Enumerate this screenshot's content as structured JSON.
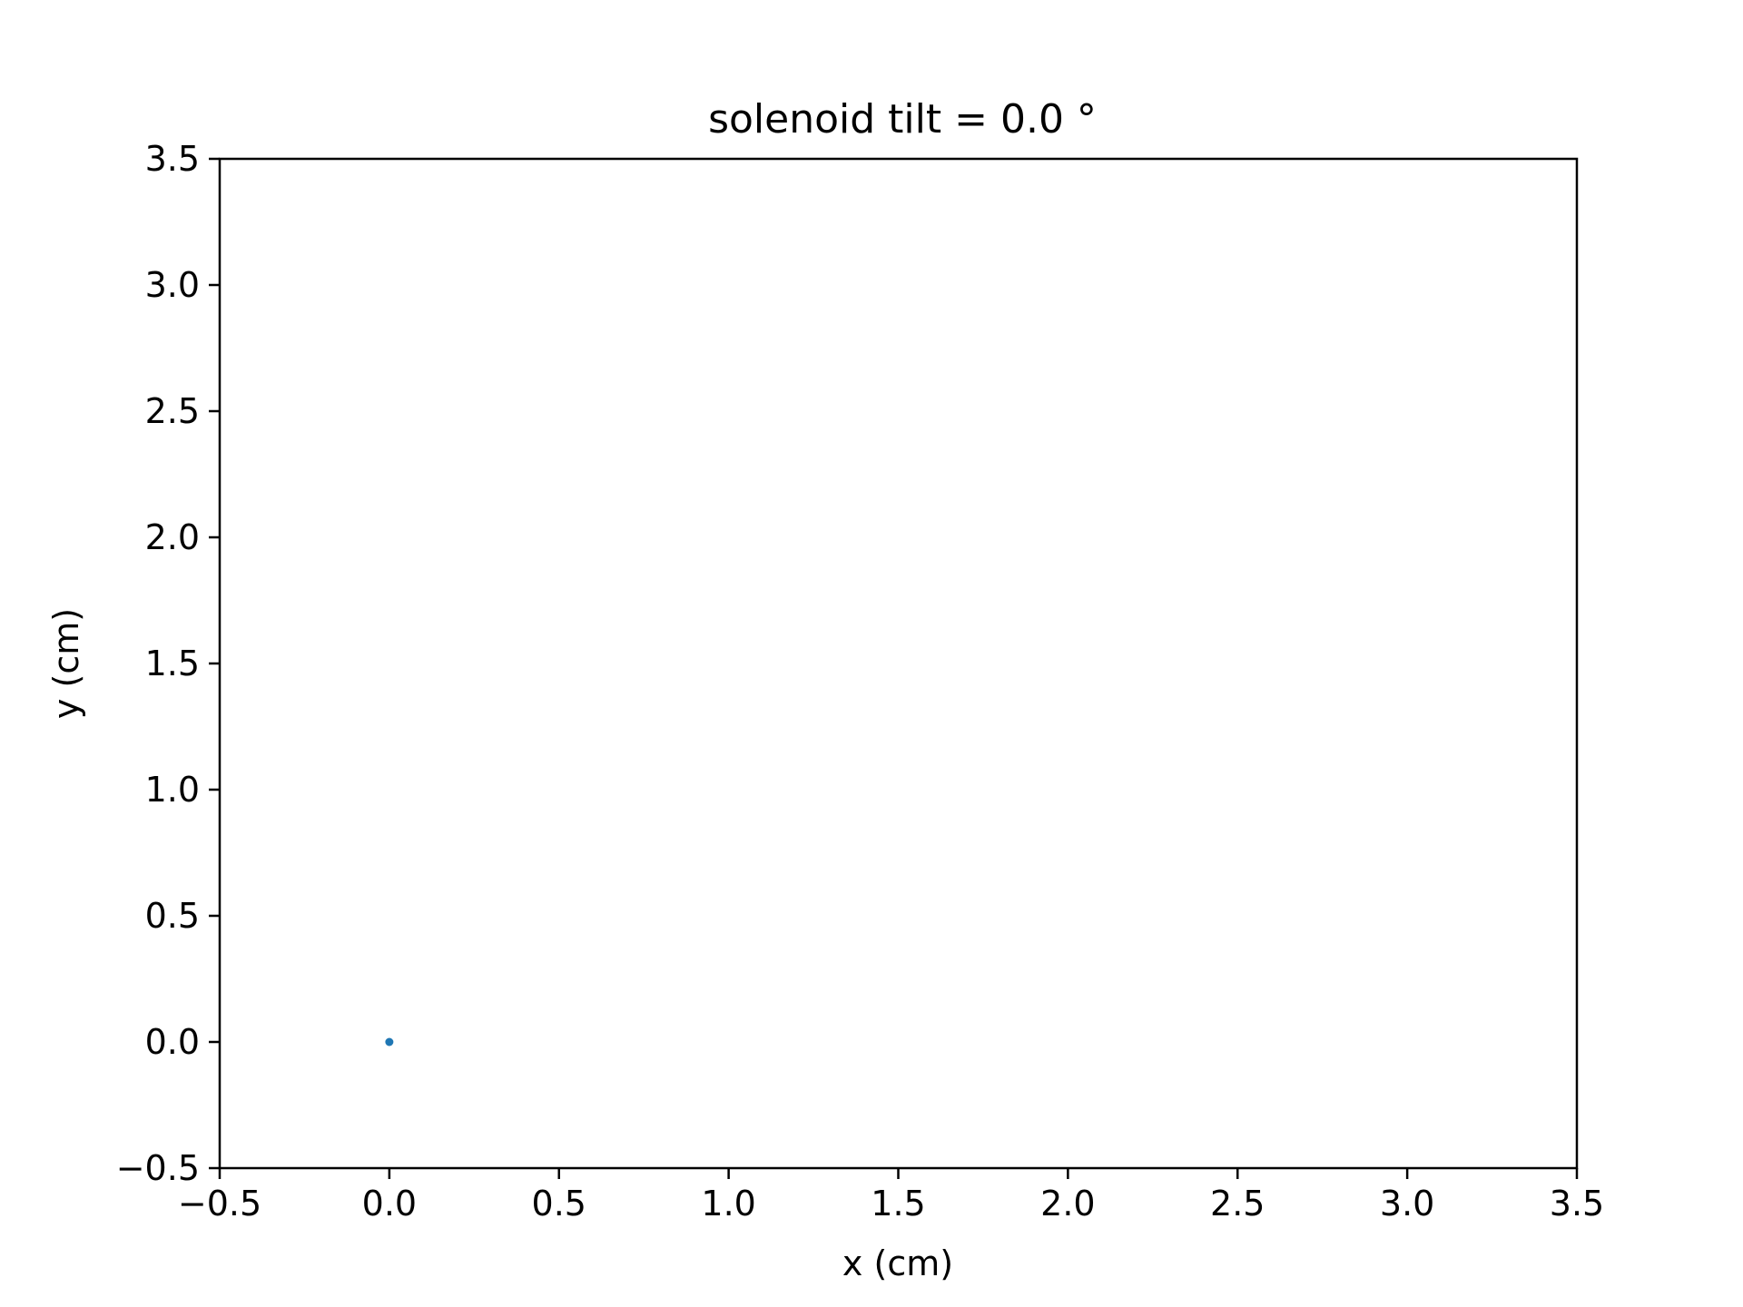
{
  "chart_data": {
    "type": "scatter",
    "title": "solenoid tilt = 0.0 °",
    "xlabel": "x (cm)",
    "ylabel": "y (cm)",
    "xlim": [
      -0.5,
      3.5
    ],
    "ylim": [
      -0.5,
      3.5
    ],
    "x_ticks": [
      -0.5,
      0.0,
      0.5,
      1.0,
      1.5,
      2.0,
      2.5,
      3.0,
      3.5
    ],
    "y_ticks": [
      -0.5,
      0.0,
      0.5,
      1.0,
      1.5,
      2.0,
      2.5,
      3.0,
      3.5
    ],
    "x_tick_labels": [
      "−0.5",
      "0.0",
      "0.5",
      "1.0",
      "1.5",
      "2.0",
      "2.5",
      "3.0",
      "3.5"
    ],
    "y_tick_labels": [
      "−0.5",
      "0.0",
      "0.5",
      "1.0",
      "1.5",
      "2.0",
      "2.5",
      "3.0",
      "3.5"
    ],
    "grid": false,
    "legend": "none",
    "series": [
      {
        "color": "#1f77b4",
        "points": [
          {
            "x": 0.0,
            "y": 0.0
          }
        ]
      }
    ]
  }
}
